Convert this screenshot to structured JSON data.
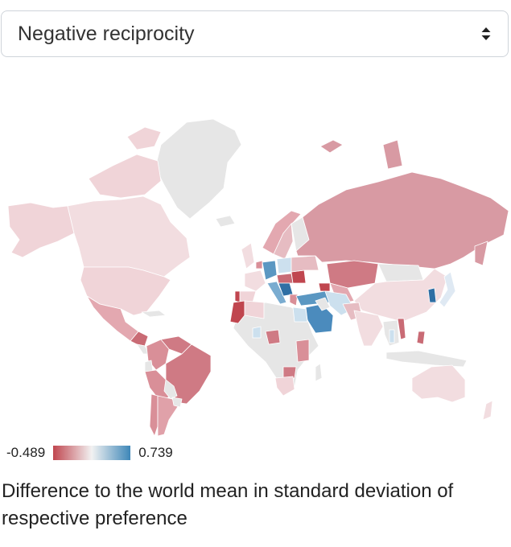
{
  "selector": {
    "selected": "Negative reciprocity",
    "icon": "sort-arrows-icon"
  },
  "legend": {
    "min_label": "-0.489",
    "max_label": "0.739",
    "color_low": "#c0464f",
    "color_mid": "#f2f2f2",
    "color_high": "#3e87b8"
  },
  "caption": "Difference to the world mean in standard deviation of respective preference",
  "colors": {
    "no_data": "#e6e6e6",
    "border": "#ffffff"
  }
}
